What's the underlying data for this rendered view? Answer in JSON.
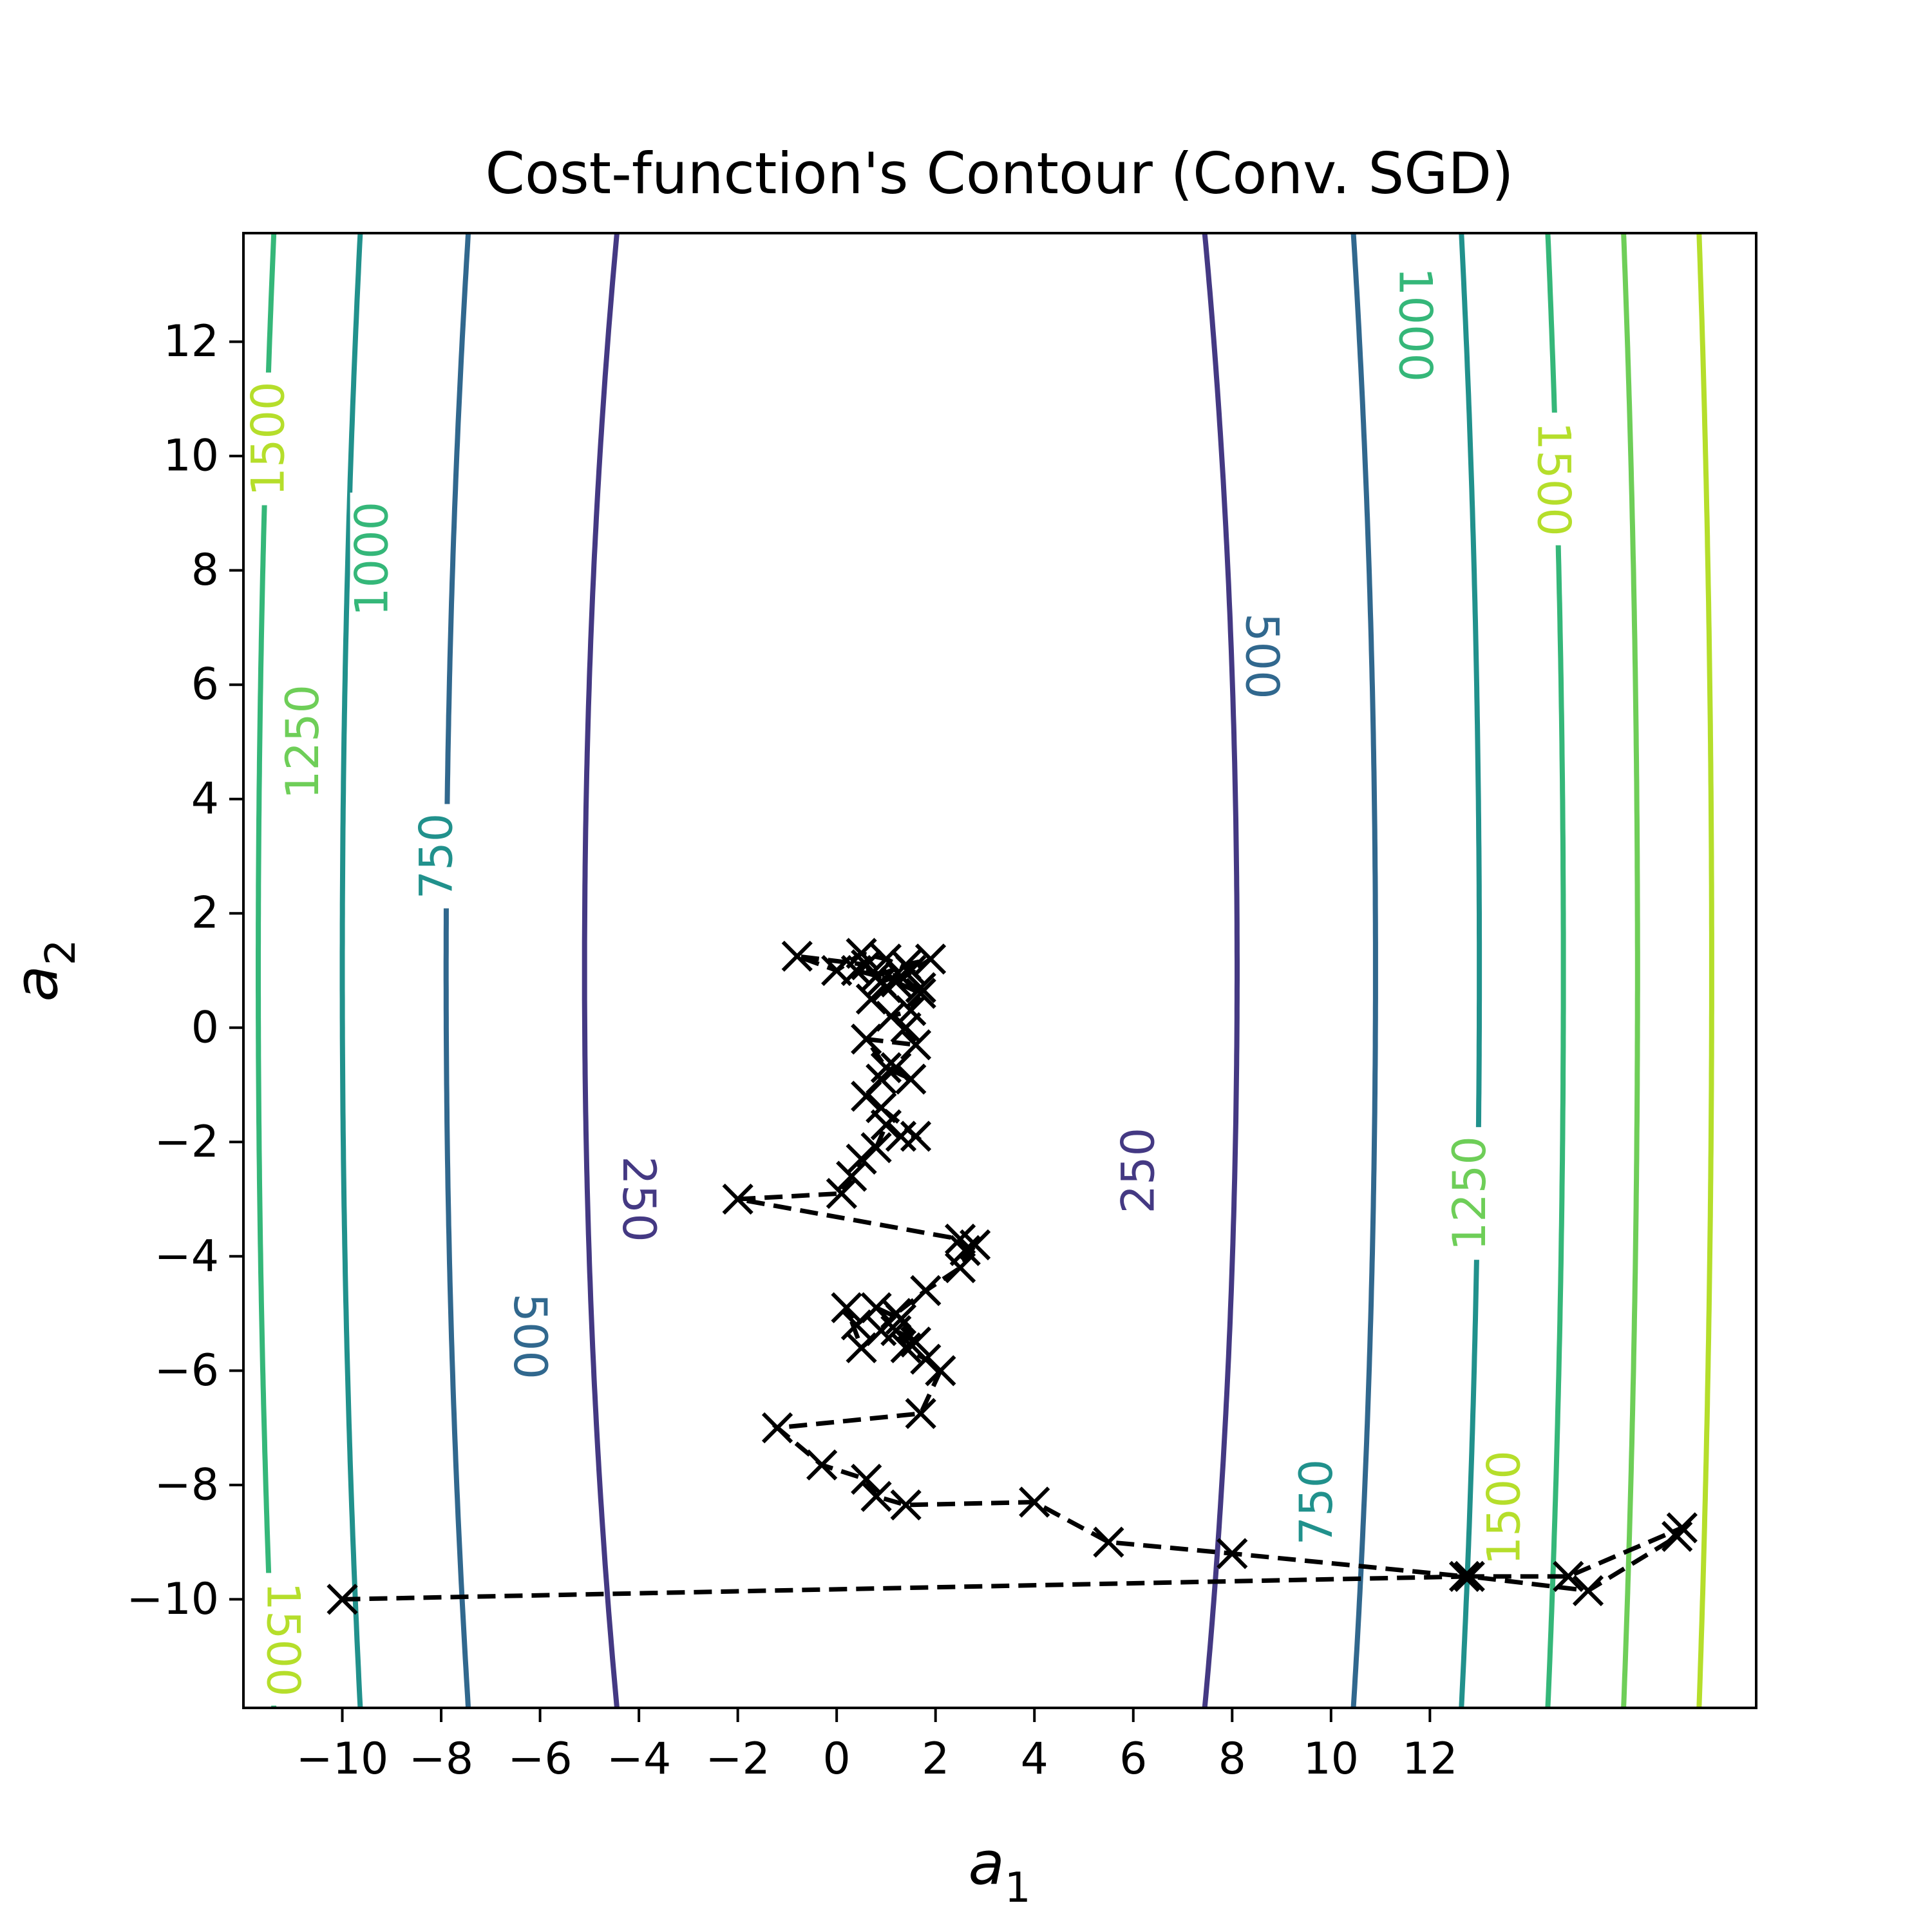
{
  "chart_data": {
    "type": "contour",
    "title": "Cost-function's Contour (Conv. SGD)",
    "xlabel": "a",
    "xlabel_sub": "1",
    "ylabel": "a",
    "ylabel_sub": "2",
    "xlim": [
      -12,
      18.6
    ],
    "ylim": [
      -11.9,
      13.9
    ],
    "xticks": [
      -10,
      -8,
      -6,
      -4,
      -2,
      0,
      2,
      4,
      6,
      8,
      10,
      12
    ],
    "xtick_labels": [
      "−10",
      "−8",
      "−6",
      "−4",
      "−2",
      "0",
      "2",
      "4",
      "6",
      "8",
      "10",
      "12"
    ],
    "yticks": [
      -10,
      -8,
      -6,
      -4,
      -2,
      0,
      2,
      4,
      6,
      8,
      10,
      12
    ],
    "ytick_labels": [
      "−10",
      "−8",
      "−6",
      "−4",
      "−2",
      "0",
      "2",
      "4",
      "6",
      "8",
      "10",
      "12"
    ],
    "grid": false,
    "contour_center": [
      1.5,
      1.0
    ],
    "contour_levels": [
      {
        "level": 250,
        "label": "250",
        "color": "#443983",
        "half_width": 6.6
      },
      {
        "level": 500,
        "label": "500",
        "color": "#31688e",
        "half_width": 9.4
      },
      {
        "level": 750,
        "label": "750",
        "color": "#21918c",
        "half_width": 11.5
      },
      {
        "level": 1000,
        "label": "1000",
        "color": "#35b779",
        "half_width": 13.2
      },
      {
        "level": 1250,
        "label": "1250",
        "color": "#6ece58",
        "half_width": 14.7
      },
      {
        "level": 1500,
        "label": "1500",
        "color": "#b5de2b",
        "half_width": 16.2
      }
    ],
    "contour_labels": [
      {
        "text": "250",
        "level": 250,
        "x": -4.0,
        "y": -3.0,
        "rot": 90
      },
      {
        "text": "250",
        "level": 250,
        "x": 6.1,
        "y": -2.5,
        "rot": -90
      },
      {
        "text": "500",
        "level": 500,
        "x": -6.2,
        "y": -5.4,
        "rot": 90
      },
      {
        "text": "500",
        "level": 500,
        "x": 8.6,
        "y": 6.5,
        "rot": 90
      },
      {
        "text": "750",
        "level": 750,
        "x": -8.1,
        "y": 3.0,
        "rot": -90
      },
      {
        "text": "750",
        "level": 750,
        "x": 9.7,
        "y": -8.3,
        "rot": -90
      },
      {
        "text": "1000",
        "level": 1000,
        "x": -9.4,
        "y": 8.2,
        "rot": -90
      },
      {
        "text": "1000",
        "level": 1000,
        "x": 11.7,
        "y": 12.3,
        "rot": 90
      },
      {
        "text": "1250",
        "level": 1250,
        "x": -10.8,
        "y": 5.0,
        "rot": -90
      },
      {
        "text": "1250",
        "level": 1250,
        "x": 12.8,
        "y": -2.9,
        "rot": -90
      },
      {
        "text": "1500",
        "level": 1500,
        "x": -11.5,
        "y": 10.3,
        "rot": -90
      },
      {
        "text": "1500",
        "level": 1500,
        "x": 14.5,
        "y": 9.6,
        "rot": 90
      },
      {
        "text": "1500",
        "level": 1500,
        "x": 13.5,
        "y": -8.4,
        "rot": -90
      },
      {
        "text": "1500",
        "level": 1500,
        "x": -11.2,
        "y": -10.7,
        "rot": 90
      }
    ],
    "series": [
      {
        "marker": "x",
        "line_style": "dashed",
        "color": "#000000",
        "x": [
          -10.0,
          12.8,
          15.2,
          17.0,
          17.1,
          14.8,
          12.7,
          8.0,
          5.5,
          4.0,
          1.4,
          0.8,
          0.6,
          -0.3,
          -1.2,
          1.7,
          2.1,
          1.8,
          1.4,
          1.2,
          1.6,
          1.3,
          0.8,
          0.4,
          0.2,
          0.5,
          0.9,
          1.2,
          1.8,
          2.5,
          2.8,
          2.6,
          2.5,
          -2.0,
          0.1,
          0.3,
          0.5,
          0.8,
          1.0,
          1.3,
          1.6,
          0.9,
          0.6,
          0.9,
          1.2,
          1.5,
          1.0,
          0.6,
          1.6,
          1.4,
          1.1,
          1.5,
          1.7,
          1.2,
          1.0,
          0.7,
          1.9,
          1.4,
          0.8,
          0.6,
          -0.8,
          0.0,
          0.5,
          1.0,
          1.5,
          0.9,
          1.3,
          0.4,
          1.7
        ],
        "y": [
          -10.0,
          -9.6,
          -9.85,
          -8.9,
          -8.75,
          -9.6,
          -9.6,
          -9.2,
          -9.0,
          -8.3,
          -8.35,
          -8.2,
          -7.9,
          -7.65,
          -7.0,
          -6.75,
          -6.0,
          -5.8,
          -5.6,
          -5.3,
          -5.5,
          -5.1,
          -4.9,
          -5.2,
          -4.9,
          -5.6,
          -5.3,
          -5.0,
          -4.6,
          -4.2,
          -3.8,
          -3.9,
          -3.7,
          -3.0,
          -2.9,
          -2.6,
          -2.3,
          -2.1,
          -1.7,
          -1.9,
          -1.9,
          -1.4,
          -1.2,
          -0.9,
          -0.7,
          -0.9,
          -0.7,
          -0.2,
          -0.3,
          0.0,
          0.2,
          0.3,
          0.6,
          0.8,
          0.7,
          0.5,
          1.2,
          1.1,
          0.9,
          1.1,
          1.25,
          1.0,
          1.3,
          1.2,
          1.0,
          0.8,
          0.9,
          1.0,
          0.7
        ]
      }
    ]
  }
}
